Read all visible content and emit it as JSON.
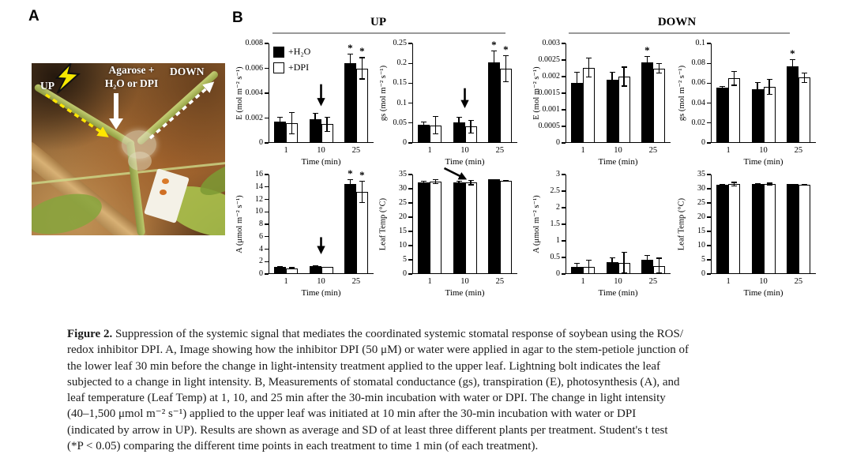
{
  "figure": {
    "panel_a": {
      "label": "A",
      "photo": {
        "up": "UP",
        "agarose_line1": "Agarose +",
        "agarose_line2": "H₂O or DPI",
        "down": "DOWN",
        "icons": [
          "lightning-bolt-icon",
          "down-arrow-icon",
          "dashed-arrow-yellow-icon",
          "dashed-arrow-white-icon"
        ]
      }
    },
    "panel_b": {
      "label": "B",
      "groups": [
        "UP",
        "DOWN"
      ]
    },
    "caption": {
      "label": "Figure 2.",
      "lines": [
        " Suppression of the systemic signal that mediates the coordinated systemic stomatal response of soybean using the ROS/",
        "redox inhibitor DPI. A, Image showing how the inhibitor DPI (50 μM) or water were applied in agar to the stem-petiole junction of",
        "the lower leaf 30 min before the change in light-intensity treatment applied to the upper leaf. Lightning bolt indicates the leaf",
        "subjected to a change in light intensity. B, Measurements of stomatal conductance (gs), transpiration (E), photosynthesis (A), and",
        "leaf temperature (Leaf Temp) at 1, 10, and 25 min after the 30-min incubation with water or DPI. The change in light intensity",
        "(40–1,500 μmol m⁻² s⁻¹) applied to the upper leaf was initiated at 10 min after the 30-min incubation with water or DPI",
        "(indicated by arrow in UP). Results are shown as average and SD of at least three different plants per treatment. Student's t test",
        "(*P < 0.05) comparing the different time points in each treatment to time 1 min (of each treatment)."
      ]
    }
  },
  "colors": {
    "bar_filled": "#000000",
    "bar_open": "#ffffff",
    "axis": "#000000",
    "header_line": "#9a9a9a",
    "photo_label": "#ffffff",
    "lightning": "#f6e800"
  },
  "chart_data": [
    {
      "id": "up-e",
      "group": "UP",
      "type": "bar",
      "ylabel": "E (mol m⁻² s⁻¹)",
      "ylim": [
        0,
        0.008
      ],
      "yticks": [
        0,
        0.002,
        0.004,
        0.006,
        0.008
      ],
      "categories": [
        "1",
        "10",
        "25"
      ],
      "xlabel": "Time (min)",
      "legend": true,
      "arrow": {
        "type": "vertical",
        "category": "10",
        "top": 0.41,
        "len": 0.18
      },
      "series": [
        {
          "name": "+H₂O",
          "fill": "filled",
          "values": [
            0.0017,
            0.0019,
            0.0064
          ],
          "errors": [
            0.0004,
            0.0005,
            0.0008
          ],
          "sig": [
            false,
            false,
            true
          ]
        },
        {
          "name": "+DPI",
          "fill": "open",
          "values": [
            0.0016,
            0.0015,
            0.006
          ],
          "errors": [
            0.0009,
            0.0006,
            0.0009
          ],
          "sig": [
            false,
            false,
            true
          ]
        }
      ]
    },
    {
      "id": "up-gs",
      "group": "UP",
      "type": "bar",
      "ylabel": "gs (mol m⁻² s⁻¹)",
      "ylim": [
        0,
        0.25
      ],
      "yticks": [
        0,
        0.05,
        0.1,
        0.15,
        0.2,
        0.25
      ],
      "categories": [
        "1",
        "10",
        "25"
      ],
      "xlabel": "Time (min)",
      "legend": false,
      "arrow": {
        "type": "vertical",
        "category": "10",
        "top": 0.45,
        "len": 0.16
      },
      "series": [
        {
          "name": "+H₂O",
          "fill": "filled",
          "values": [
            0.046,
            0.052,
            0.202
          ],
          "errors": [
            0.008,
            0.013,
            0.03
          ],
          "sig": [
            false,
            false,
            true
          ]
        },
        {
          "name": "+DPI",
          "fill": "open",
          "values": [
            0.044,
            0.041,
            0.186
          ],
          "errors": [
            0.023,
            0.017,
            0.034
          ],
          "sig": [
            false,
            false,
            true
          ]
        }
      ]
    },
    {
      "id": "down-e",
      "group": "DOWN",
      "type": "bar",
      "ylabel": "E (mol m⁻² s⁻¹)",
      "ylim": [
        0,
        0.003
      ],
      "yticks": [
        0,
        0.0005,
        0.001,
        0.0015,
        0.002,
        0.0025,
        0.003
      ],
      "categories": [
        "1",
        "10",
        "25"
      ],
      "xlabel": "Time (min)",
      "legend": false,
      "series": [
        {
          "name": "+H₂O",
          "fill": "filled",
          "values": [
            0.0018,
            0.0019,
            0.00243
          ],
          "errors": [
            0.00035,
            0.00025,
            0.0002
          ],
          "sig": [
            false,
            false,
            true
          ]
        },
        {
          "name": "+DPI",
          "fill": "open",
          "values": [
            0.00227,
            0.002,
            0.00225
          ],
          "errors": [
            0.0003,
            0.0003,
            0.00015
          ],
          "sig": [
            false,
            false,
            false
          ]
        }
      ]
    },
    {
      "id": "down-gs",
      "group": "DOWN",
      "type": "bar",
      "ylabel": "gs (mol m⁻² s⁻¹)",
      "ylim": [
        0,
        0.1
      ],
      "yticks": [
        0,
        0.02,
        0.04,
        0.06,
        0.08,
        0.1
      ],
      "categories": [
        "1",
        "10",
        "25"
      ],
      "xlabel": "Time (min)",
      "legend": false,
      "series": [
        {
          "name": "+H₂O",
          "fill": "filled",
          "values": [
            0.0555,
            0.054,
            0.077
          ],
          "errors": [
            0.002,
            0.007,
            0.007
          ],
          "sig": [
            false,
            false,
            true
          ]
        },
        {
          "name": "+DPI",
          "fill": "open",
          "values": [
            0.065,
            0.0565,
            0.0655
          ],
          "errors": [
            0.0075,
            0.008,
            0.0055
          ],
          "sig": [
            false,
            false,
            false
          ]
        }
      ]
    },
    {
      "id": "up-a",
      "group": "UP",
      "type": "bar",
      "ylabel": "A (μmol m⁻² s⁻¹)",
      "ylim": [
        0,
        16
      ],
      "yticks": [
        0,
        2,
        4,
        6,
        8,
        10,
        12,
        14,
        16
      ],
      "categories": [
        "1",
        "10",
        "25"
      ],
      "xlabel": "Time (min)",
      "legend": false,
      "arrow": {
        "type": "vertical",
        "category": "10",
        "top": 0.63,
        "len": 0.13
      },
      "series": [
        {
          "name": "+H₂O",
          "fill": "filled",
          "values": [
            1.2,
            1.3,
            14.5
          ],
          "errors": [
            0.1,
            0.1,
            0.7
          ],
          "sig": [
            false,
            false,
            true
          ]
        },
        {
          "name": "+DPI",
          "fill": "open",
          "values": [
            0.9,
            1.1,
            13.2
          ],
          "errors": [
            0.2,
            0.1,
            1.8
          ],
          "sig": [
            false,
            false,
            true
          ]
        }
      ]
    },
    {
      "id": "up-leaf-temp",
      "group": "UP",
      "type": "bar",
      "ylabel": "Leaf Temp (°C)",
      "ylim": [
        0,
        35
      ],
      "yticks": [
        0,
        5,
        10,
        15,
        20,
        25,
        30,
        35
      ],
      "categories": [
        "1",
        "10",
        "25"
      ],
      "xlabel": "Time (min)",
      "legend": false,
      "arrow": {
        "type": "diagonal",
        "category": "10"
      },
      "series": [
        {
          "name": "+H₂O",
          "fill": "filled",
          "values": [
            32.3,
            32.2,
            33.2
          ],
          "errors": [
            0.5,
            0.5,
            0.15
          ],
          "sig": [
            false,
            false,
            false
          ]
        },
        {
          "name": "+DPI",
          "fill": "open",
          "values": [
            32.5,
            32.1,
            32.8
          ],
          "errors": [
            0.9,
            0.9,
            0.15
          ],
          "sig": [
            false,
            false,
            false
          ]
        }
      ]
    },
    {
      "id": "down-a",
      "group": "DOWN",
      "type": "bar",
      "ylabel": "A (μmol m⁻² s⁻¹)",
      "ylim": [
        0,
        3
      ],
      "yticks": [
        0,
        0.5,
        1,
        1.5,
        2,
        2.5,
        3
      ],
      "categories": [
        "1",
        "10",
        "25"
      ],
      "xlabel": "Time (min)",
      "legend": false,
      "series": [
        {
          "name": "+H₂O",
          "fill": "filled",
          "values": [
            0.22,
            0.36,
            0.42
          ],
          "errors": [
            0.12,
            0.15,
            0.15
          ],
          "sig": [
            false,
            false,
            false
          ]
        },
        {
          "name": "+DPI",
          "fill": "open",
          "values": [
            0.22,
            0.34,
            0.25
          ],
          "errors": [
            0.22,
            0.33,
            0.24
          ],
          "sig": [
            false,
            false,
            false
          ]
        }
      ]
    },
    {
      "id": "down-leaf-temp",
      "group": "DOWN",
      "type": "bar",
      "ylabel": "Leaf Temp (°C)",
      "ylim": [
        0,
        35
      ],
      "yticks": [
        0,
        5,
        10,
        15,
        20,
        25,
        30,
        35
      ],
      "categories": [
        "1",
        "10",
        "25"
      ],
      "xlabel": "Time (min)",
      "legend": false,
      "series": [
        {
          "name": "+H₂O",
          "fill": "filled",
          "values": [
            31.4,
            31.6,
            31.6
          ],
          "errors": [
            0.2,
            0.3,
            0.15
          ],
          "sig": [
            false,
            false,
            false
          ]
        },
        {
          "name": "+DPI",
          "fill": "open",
          "values": [
            31.6,
            31.6,
            31.4
          ],
          "errors": [
            0.8,
            0.5,
            0.3
          ],
          "sig": [
            false,
            false,
            false
          ]
        }
      ]
    }
  ]
}
